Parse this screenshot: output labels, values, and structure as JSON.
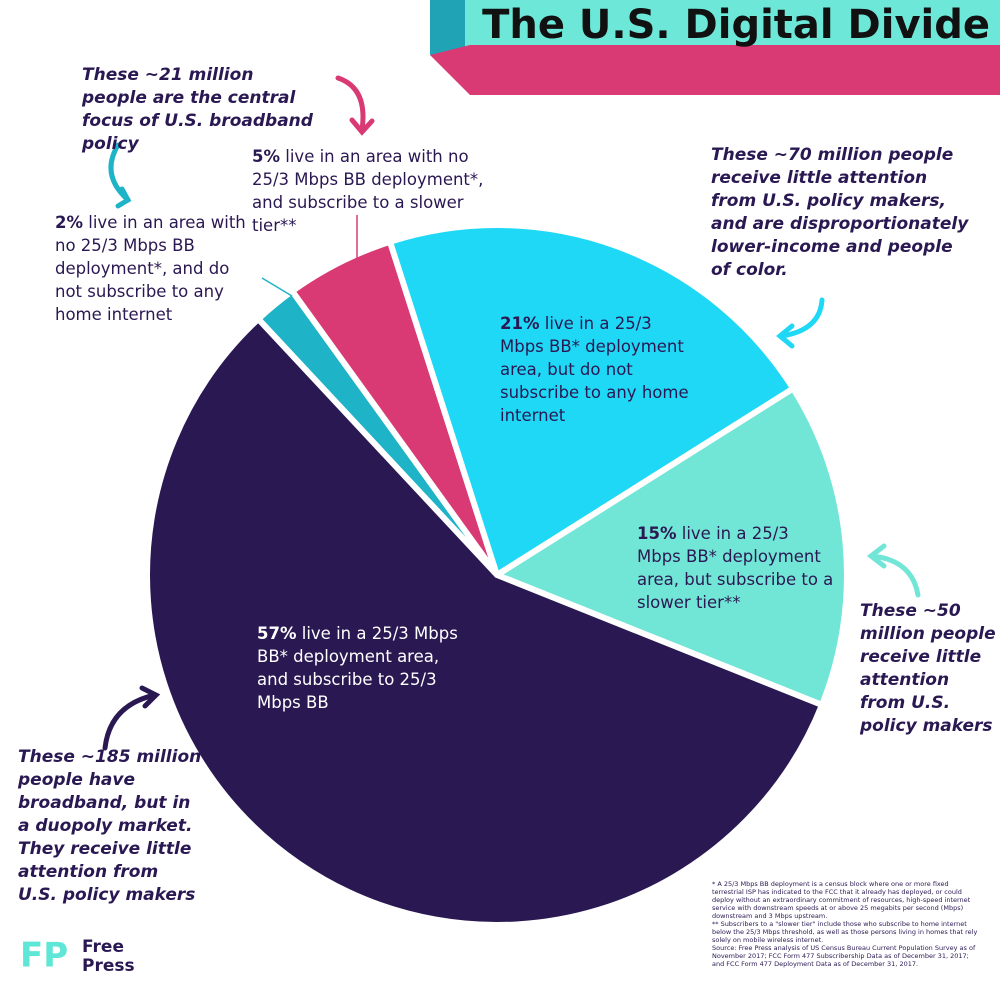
{
  "header": {
    "title": "The U.S. Digital Divide"
  },
  "chart_data": {
    "type": "pie",
    "values": [
      2,
      5,
      21,
      15,
      57
    ],
    "value_labels": [
      "2%",
      "5%",
      "21%",
      "15%",
      "57%"
    ],
    "slice_texts": [
      "live in an area with no 25/3 Mbps BB deployment*, and do not subscribe to any home internet",
      "live in an area with no 25/3 Mbps BB deployment*, and subscribe to a slower tier**",
      "live in a 25/3 Mbps BB* deployment area, but do not subscribe to any home internet",
      "live in a 25/3 Mbps BB* deployment area, but subscribe to a slower tier**",
      "live in a 25/3 Mbps BB* deployment area, and subscribe to 25/3 Mbps BB"
    ],
    "colors": [
      "#1fb3c8",
      "#d93a74",
      "#1ed8f6",
      "#72e6d6",
      "#2a1852"
    ],
    "annotations": [
      "These ~21 million people are the central focus of U.S. broadband policy",
      "These ~70 million people receive little attention from U.S. policy makers, and are disproportionately lower-income and people of color.",
      "These ~50 million people receive little attention from U.S. policy makers",
      "These ~185 million people have broadband, but in a duopoly market. They receive little attention from U.S. policy makers"
    ]
  },
  "footnotes": [
    "* A 25/3 Mbps BB deployment is a census block where one or more fixed terrestrial ISP has indicated to the FCC that it already has deployed, or could deploy without an extraordinary commitment of resources, high-speed internet service with downstream speeds at or above 25 megabits per second (Mbps) downstream and 3 Mbps upstream.",
    "** Subscribers to a \"slower tier\" include those who subscribe to home internet below the 25/3 Mbps threshold, as well as those persons living in homes that rely solely on mobile wireless internet.",
    "Source: Free Press analysis of US Census Bureau Current Population Survey as of November 2017; FCC Form 477 Subscribership Data as of December 31, 2017; and FCC Form 477 Deployment Data as of December 31, 2017."
  ],
  "logo": {
    "mark": "FP",
    "name": "Free Press"
  }
}
